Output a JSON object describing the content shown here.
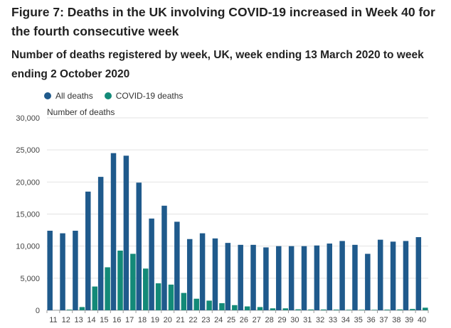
{
  "header": {
    "title": "Figure 7: Deaths in the UK involving COVID-19 increased in Week 40 for the fourth consecutive week",
    "subtitle": "Number of deaths registered by week, UK, week ending 13 March 2020 to week ending 2 October 2020"
  },
  "legend": {
    "all_deaths": "All deaths",
    "covid_deaths": "COVID-19 deaths"
  },
  "colors": {
    "all_deaths": "#1f5a8c",
    "covid_deaths": "#138a78",
    "grid": "#e3e3e3"
  },
  "chart_data": {
    "type": "bar",
    "ylabel": "Number of deaths",
    "ylim": [
      0,
      30000
    ],
    "yticks": [
      "0",
      "5,000",
      "10,000",
      "15,000",
      "20,000",
      "25,000",
      "30,000"
    ],
    "ytick_values": [
      0,
      5000,
      10000,
      15000,
      20000,
      25000,
      30000
    ],
    "grid": true,
    "legend_position": "top-left",
    "categories": [
      "11",
      "12",
      "13",
      "14",
      "15",
      "16",
      "17",
      "18",
      "19",
      "20",
      "21",
      "22",
      "23",
      "24",
      "25",
      "26",
      "27",
      "28",
      "29",
      "30",
      "31",
      "32",
      "33",
      "34",
      "35",
      "36",
      "37",
      "38",
      "39",
      "40"
    ],
    "series": [
      {
        "name": "All deaths",
        "values": [
          12400,
          12000,
          12400,
          18500,
          20800,
          24500,
          24100,
          19900,
          14300,
          16300,
          13800,
          11100,
          12000,
          11200,
          10500,
          10200,
          10200,
          9800,
          10000,
          10000,
          10000,
          10100,
          10400,
          10800,
          10200,
          8800,
          11000,
          10700,
          10800,
          11400
        ]
      },
      {
        "name": "COVID-19 deaths",
        "values": [
          10,
          100,
          500,
          3700,
          6700,
          9300,
          8800,
          6500,
          4200,
          4000,
          2700,
          1800,
          1500,
          1100,
          800,
          600,
          500,
          300,
          300,
          150,
          120,
          120,
          100,
          80,
          80,
          70,
          100,
          130,
          200,
          400
        ]
      }
    ]
  }
}
